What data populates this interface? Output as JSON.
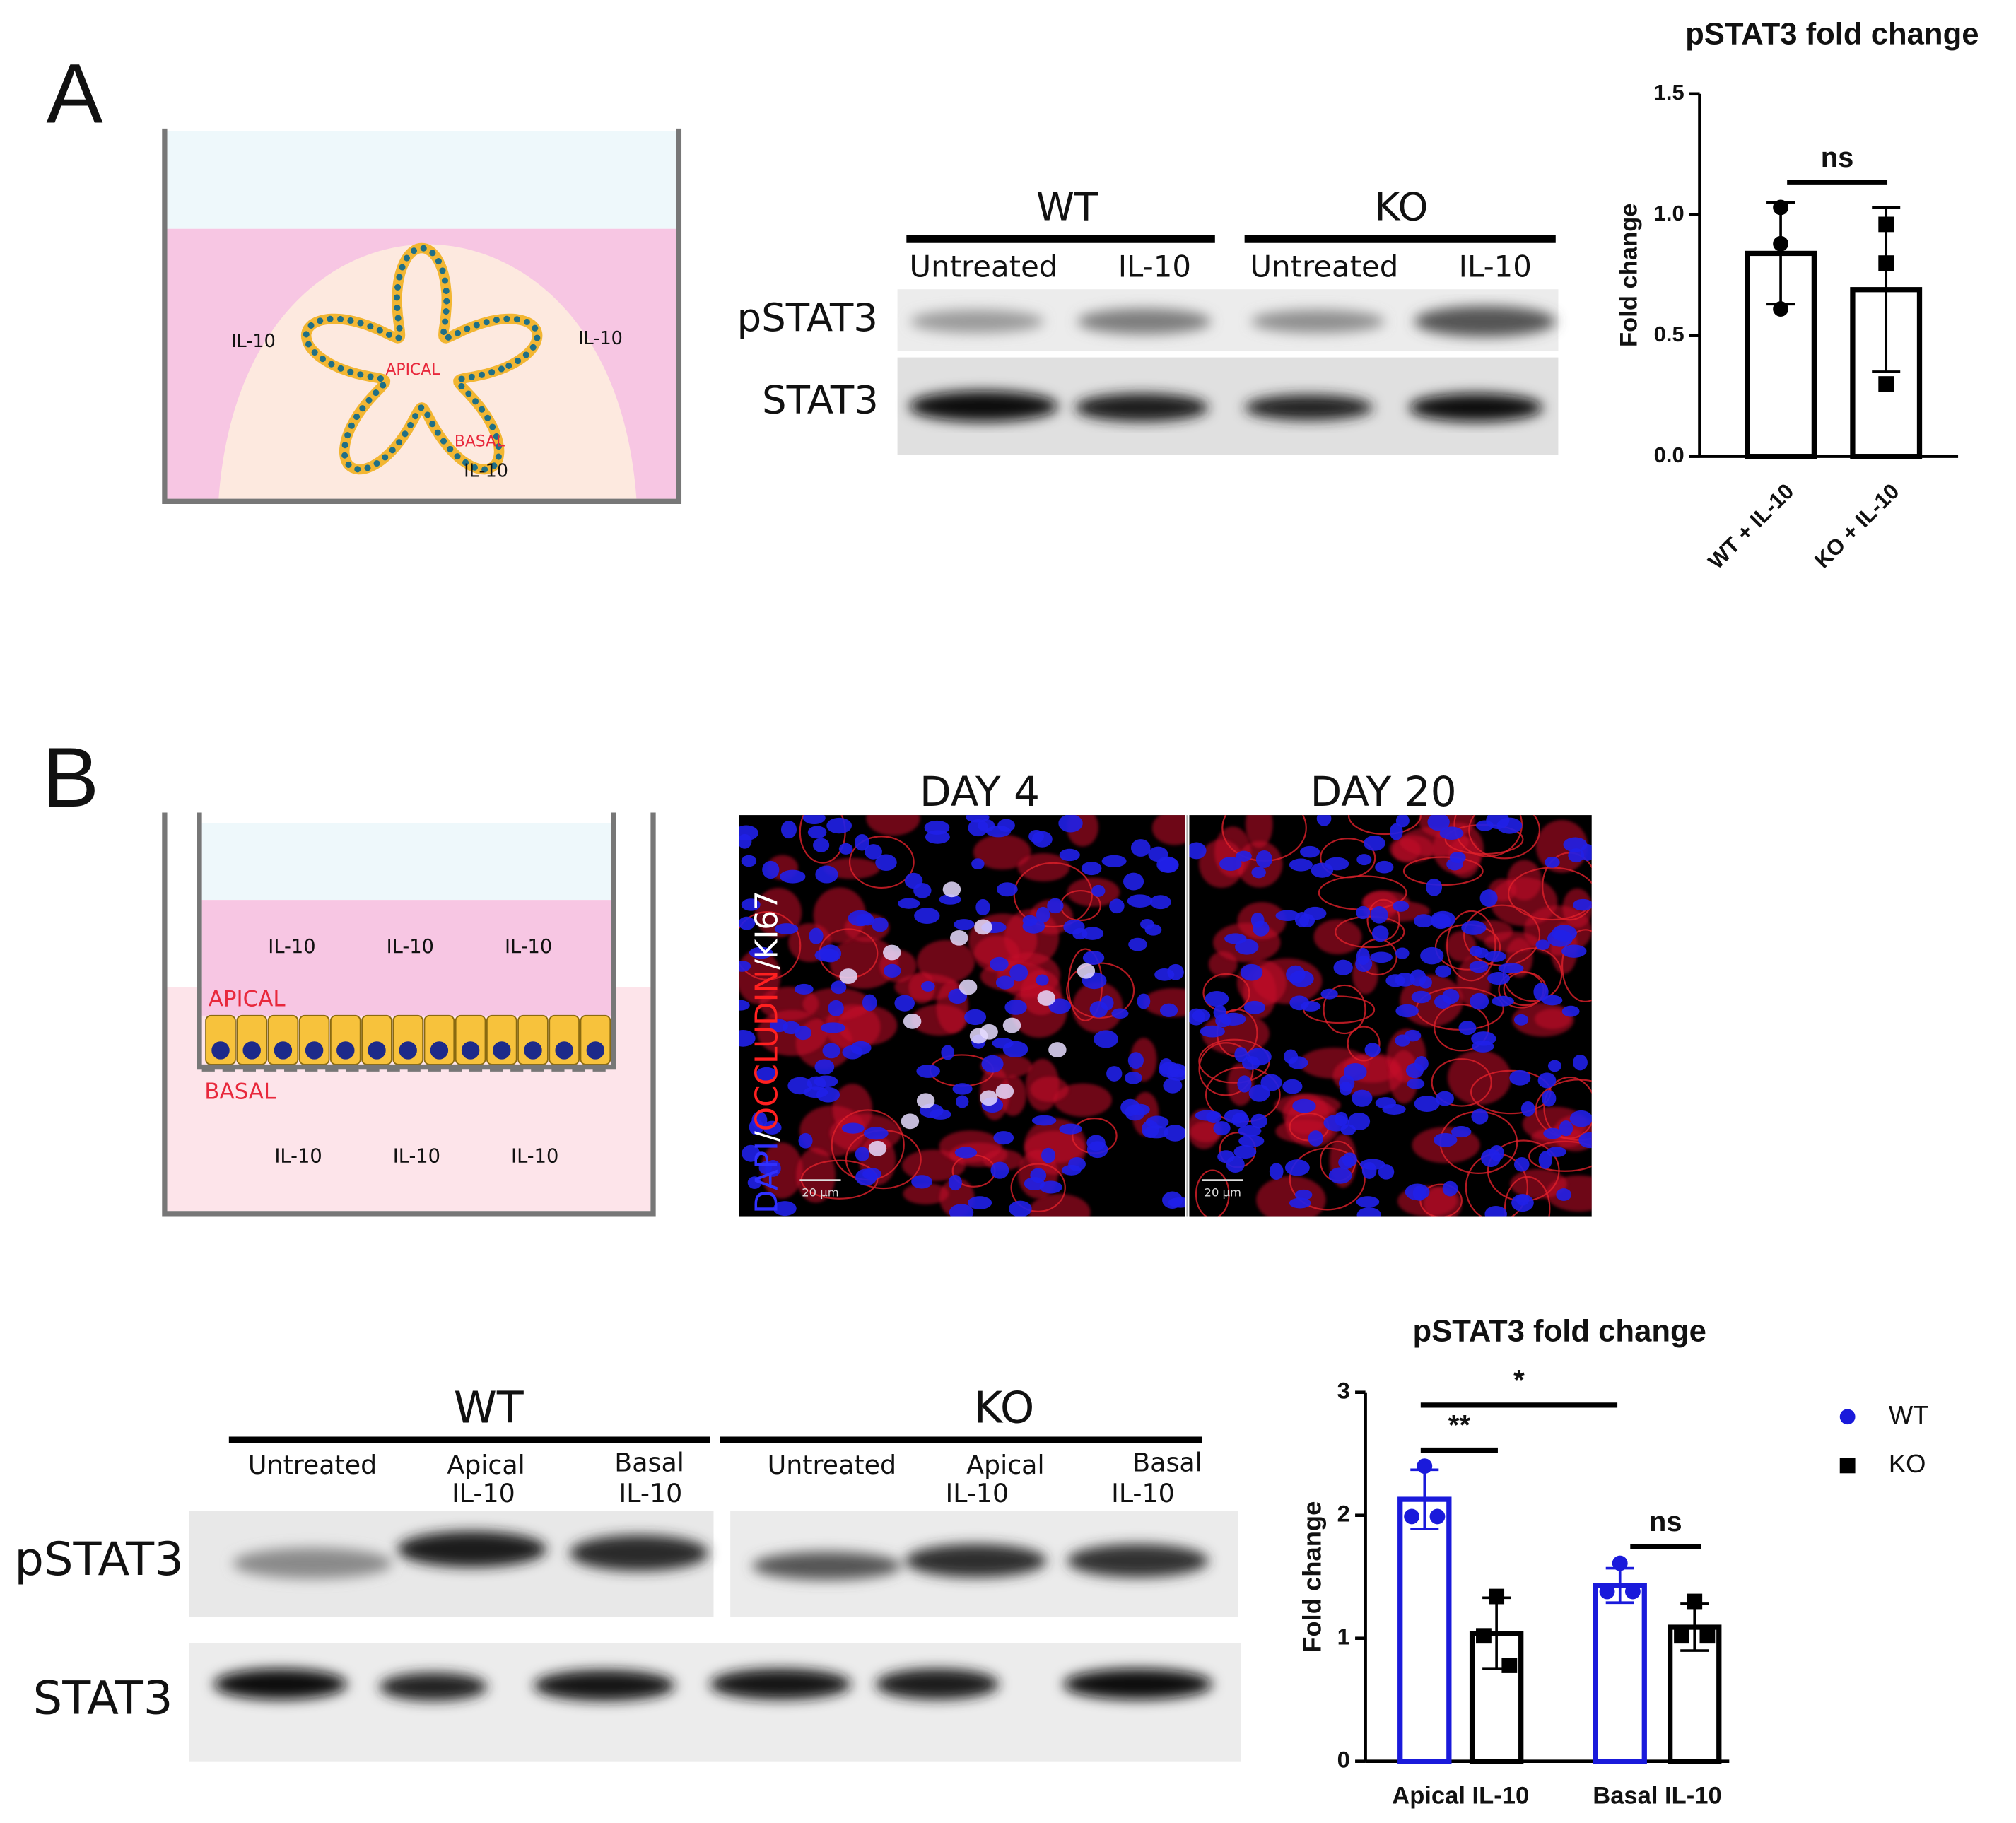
{
  "panel_a": {
    "label": "A",
    "schematic": [
      "IL-10",
      "IL-10",
      "APICAL",
      "BASAL",
      "IL-10"
    ],
    "blot": {
      "groups": [
        "WT",
        "KO"
      ],
      "lanes": [
        "Untreated",
        "IL-10",
        "Untreated",
        "IL-10"
      ],
      "rows": [
        "pSTAT3",
        "STAT3"
      ]
    }
  },
  "panel_b": {
    "label": "B",
    "schematic": [
      "IL-10",
      "IL-10",
      "IL-10",
      "APICAL",
      "BASAL",
      "IL-10",
      "IL-10",
      "IL-10"
    ],
    "images": [
      "DAY 4",
      "DAY 20"
    ],
    "stain": [
      "DAPI",
      "/",
      "OCCLUDIN",
      "/",
      "KI67"
    ],
    "scale_bars": [
      "20 µm",
      "20 µm"
    ],
    "blot": {
      "groups": [
        "WT",
        "KO"
      ],
      "lanes": [
        [
          "Untreated"
        ],
        [
          "Apical",
          "IL-10"
        ],
        [
          "Basal",
          "IL-10"
        ],
        [
          "Untreated"
        ],
        [
          "Apical",
          "IL-10"
        ],
        [
          "Basal",
          "IL-10"
        ]
      ],
      "rows": [
        "pSTAT3",
        "STAT3"
      ]
    }
  },
  "chart_data": [
    {
      "type": "bar",
      "title": "pSTAT3 fold change",
      "y_label": "Fold change",
      "categories": [
        "WT + IL-10",
        "KO + IL-10"
      ],
      "values": [
        0.84,
        0.69
      ],
      "errors": [
        0.21,
        0.34
      ],
      "points": [
        [
          1.03,
          0.88,
          0.61
        ],
        [
          0.96,
          0.8,
          0.3
        ]
      ],
      "markers": [
        "circle",
        "square"
      ],
      "color": "#000000",
      "ylim": [
        0,
        1.5
      ],
      "yticks": [
        {
          "value": 0,
          "label": "0.0"
        },
        0.5,
        {
          "value": 1,
          "label": "1.0"
        },
        1.5
      ],
      "annotations": [
        "ns"
      ]
    },
    {
      "type": "bar",
      "title": "pSTAT3 fold change",
      "y_label": "Fold change",
      "categories": [
        "Apical IL-10",
        "Basal IL-10"
      ],
      "series": [
        {
          "name": "WT",
          "color": "#1a1adb",
          "marker": "circle",
          "values": [
            2.13,
            1.43
          ],
          "errors": [
            0.24,
            0.14
          ],
          "points": [
            [
              1.99,
              2.4,
              1.99
            ],
            [
              1.38,
              1.61,
              1.38
            ]
          ]
        },
        {
          "name": "KO",
          "color": "#000000",
          "marker": "square",
          "values": [
            1.04,
            1.09
          ],
          "errors": [
            0.29,
            0.19
          ],
          "points": [
            [
              1.02,
              1.34,
              0.78
            ],
            [
              1.02,
              1.3,
              1.02
            ]
          ]
        }
      ],
      "ylim": [
        0,
        3
      ],
      "yticks": [
        0,
        1,
        2,
        3
      ],
      "annotations": [
        "**",
        "*",
        "ns"
      ],
      "legend": "right"
    }
  ]
}
